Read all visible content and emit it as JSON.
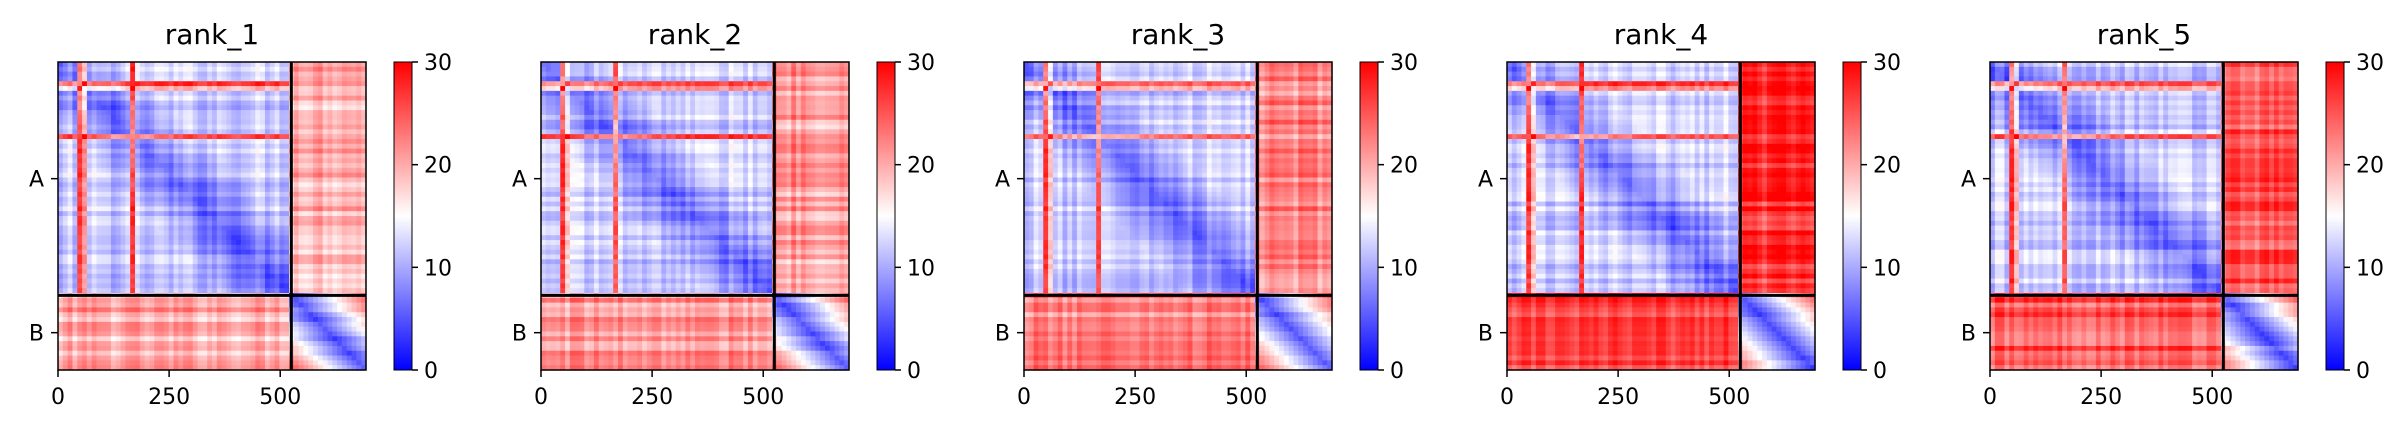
{
  "chart_data": {
    "type": "heatmap",
    "colorscale": {
      "min": 0,
      "max": 30,
      "colors": [
        "#0000ff",
        "#ffffff",
        "#ff0000"
      ],
      "ticks": [
        0,
        10,
        20,
        30
      ]
    },
    "chains": [
      {
        "label": "A",
        "start": 0,
        "end": 525
      },
      {
        "label": "B",
        "start": 525,
        "end": 693
      }
    ],
    "xticks": [
      0,
      250,
      500
    ],
    "panels": [
      {
        "title": "rank_1",
        "inter_chain_level": 20
      },
      {
        "title": "rank_2",
        "inter_chain_level": 21
      },
      {
        "title": "rank_3",
        "inter_chain_level": 22
      },
      {
        "title": "rank_4",
        "inter_chain_level": 27
      },
      {
        "title": "rank_5",
        "inter_chain_level": 25
      }
    ]
  }
}
